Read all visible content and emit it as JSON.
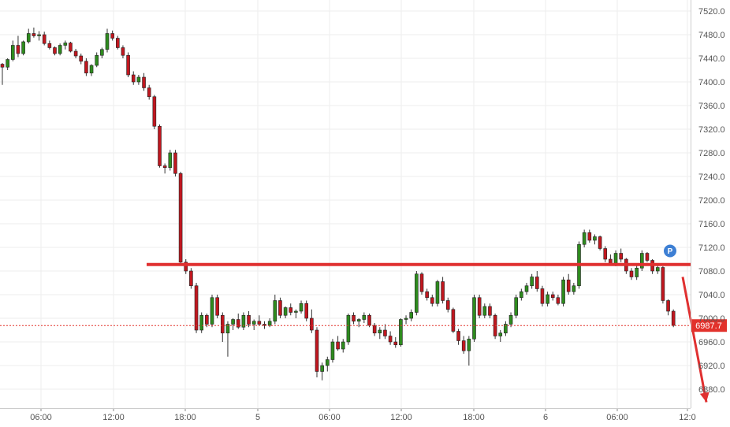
{
  "chart_data": {
    "type": "candlestick",
    "title": "",
    "ylim": [
      6870,
      7530
    ],
    "x_tick_labels": [
      "06:00",
      "12:00",
      "18:00",
      "5",
      "06:00",
      "12:00",
      "18:00",
      "6",
      "06:00",
      "12:0"
    ],
    "y_tick_labels": [
      "7520.0",
      "7480.0",
      "7440.0",
      "7400.0",
      "7360.0",
      "7320.0",
      "7280.0",
      "7240.0",
      "7200.0",
      "7160.0",
      "7120.0",
      "7080.0",
      "7040.0",
      "7000.0",
      "6960.0",
      "6920.0",
      "6880.0"
    ],
    "last_price": "6987.7",
    "last_price_value": 6987.7,
    "marker_label": "P",
    "resistance_level": 7091,
    "projection": {
      "from": 7070,
      "to": 6858
    },
    "colors": {
      "up": "#2e8b1e",
      "down": "#c0171f",
      "wick": "#333333",
      "resistance": "#e03030",
      "price_tag": "#e2322c",
      "marker": "#3d7fd4",
      "grid": "#eeeeee"
    },
    "candles": [
      [
        7430,
        7432,
        7395,
        7425
      ],
      [
        7425,
        7440,
        7420,
        7438
      ],
      [
        7438,
        7470,
        7435,
        7462
      ],
      [
        7462,
        7478,
        7442,
        7448
      ],
      [
        7448,
        7470,
        7445,
        7468
      ],
      [
        7468,
        7490,
        7465,
        7482
      ],
      [
        7482,
        7492,
        7475,
        7478
      ],
      [
        7478,
        7486,
        7470,
        7480
      ],
      [
        7480,
        7485,
        7462,
        7465
      ],
      [
        7465,
        7470,
        7455,
        7458
      ],
      [
        7458,
        7460,
        7445,
        7448
      ],
      [
        7448,
        7465,
        7445,
        7462
      ],
      [
        7462,
        7470,
        7455,
        7466
      ],
      [
        7466,
        7468,
        7450,
        7452
      ],
      [
        7452,
        7456,
        7440,
        7444
      ],
      [
        7444,
        7448,
        7430,
        7435
      ],
      [
        7435,
        7440,
        7410,
        7415
      ],
      [
        7415,
        7430,
        7410,
        7428
      ],
      [
        7428,
        7450,
        7425,
        7445
      ],
      [
        7445,
        7458,
        7440,
        7455
      ],
      [
        7455,
        7490,
        7450,
        7482
      ],
      [
        7482,
        7487,
        7470,
        7474
      ],
      [
        7474,
        7478,
        7455,
        7458
      ],
      [
        7458,
        7462,
        7440,
        7445
      ],
      [
        7445,
        7450,
        7408,
        7412
      ],
      [
        7412,
        7418,
        7395,
        7400
      ],
      [
        7400,
        7412,
        7395,
        7408
      ],
      [
        7408,
        7415,
        7385,
        7390
      ],
      [
        7390,
        7395,
        7370,
        7375
      ],
      [
        7375,
        7378,
        7320,
        7325
      ],
      [
        7325,
        7328,
        7255,
        7258
      ],
      [
        7258,
        7262,
        7245,
        7255
      ],
      [
        7255,
        7285,
        7250,
        7280
      ],
      [
        7280,
        7285,
        7240,
        7245
      ],
      [
        7245,
        7248,
        7090,
        7095
      ],
      [
        7095,
        7100,
        7075,
        7080
      ],
      [
        7080,
        7085,
        7050,
        7055
      ],
      [
        7055,
        7060,
        6975,
        6980
      ],
      [
        6980,
        7010,
        6975,
        7005
      ],
      [
        7005,
        7008,
        6985,
        6990
      ],
      [
        6990,
        7040,
        6985,
        7035
      ],
      [
        7035,
        7040,
        7000,
        7005
      ],
      [
        7005,
        7010,
        6960,
        6975
      ],
      [
        6975,
        6995,
        6935,
        6990
      ],
      [
        6990,
        7000,
        6980,
        6998
      ],
      [
        6998,
        7008,
        6982,
        6985
      ],
      [
        6985,
        7010,
        6980,
        7005
      ],
      [
        7005,
        7012,
        6985,
        6990
      ],
      [
        6990,
        6998,
        6980,
        6995
      ],
      [
        6995,
        7005,
        6988,
        6990
      ],
      [
        6990,
        6995,
        6982,
        6988
      ],
      [
        6988,
        7000,
        6985,
        6995
      ],
      [
        6995,
        7040,
        6990,
        7030
      ],
      [
        7030,
        7035,
        7000,
        7005
      ],
      [
        7005,
        7020,
        7000,
        7018
      ],
      [
        7018,
        7025,
        7005,
        7010
      ],
      [
        7010,
        7015,
        7000,
        7012
      ],
      [
        7012,
        7030,
        7008,
        7025
      ],
      [
        7025,
        7030,
        6995,
        7000
      ],
      [
        7000,
        7015,
        6975,
        6980
      ],
      [
        6980,
        6985,
        6900,
        6910
      ],
      [
        6910,
        6925,
        6895,
        6920
      ],
      [
        6920,
        6935,
        6910,
        6930
      ],
      [
        6930,
        6965,
        6925,
        6960
      ],
      [
        6960,
        6970,
        6945,
        6948
      ],
      [
        6948,
        6965,
        6942,
        6960
      ],
      [
        6960,
        7008,
        6955,
        7005
      ],
      [
        7005,
        7010,
        6990,
        6995
      ],
      [
        6995,
        7000,
        6985,
        6998
      ],
      [
        6998,
        7010,
        6992,
        7005
      ],
      [
        7005,
        7008,
        6985,
        6988
      ],
      [
        6988,
        6992,
        6970,
        6975
      ],
      [
        6975,
        6985,
        6965,
        6980
      ],
      [
        6980,
        6990,
        6965,
        6970
      ],
      [
        6970,
        6978,
        6955,
        6960
      ],
      [
        6960,
        6968,
        6950,
        6955
      ],
      [
        6955,
        7000,
        6952,
        6998
      ],
      [
        6998,
        7005,
        6990,
        7000
      ],
      [
        7000,
        7015,
        6995,
        7010
      ],
      [
        7010,
        7080,
        7005,
        7075
      ],
      [
        7075,
        7078,
        7040,
        7045
      ],
      [
        7045,
        7050,
        7030,
        7035
      ],
      [
        7035,
        7040,
        7020,
        7025
      ],
      [
        7025,
        7065,
        7020,
        7062
      ],
      [
        7062,
        7070,
        7025,
        7030
      ],
      [
        7030,
        7035,
        7010,
        7015
      ],
      [
        7015,
        7018,
        6975,
        6978
      ],
      [
        6978,
        6982,
        6955,
        6962
      ],
      [
        6962,
        6970,
        6940,
        6945
      ],
      [
        6945,
        6970,
        6920,
        6965
      ],
      [
        6965,
        7040,
        6960,
        7035
      ],
      [
        7035,
        7040,
        7000,
        7005
      ],
      [
        7005,
        7025,
        7000,
        7020
      ],
      [
        7020,
        7025,
        7000,
        7005
      ],
      [
        7005,
        7008,
        6965,
        6970
      ],
      [
        6970,
        6980,
        6960,
        6975
      ],
      [
        6975,
        6995,
        6970,
        6990
      ],
      [
        6990,
        7010,
        6985,
        7005
      ],
      [
        7005,
        7040,
        7000,
        7035
      ],
      [
        7035,
        7050,
        7030,
        7045
      ],
      [
        7045,
        7060,
        7040,
        7055
      ],
      [
        7055,
        7075,
        7050,
        7070
      ],
      [
        7070,
        7080,
        7045,
        7050
      ],
      [
        7050,
        7055,
        7020,
        7025
      ],
      [
        7025,
        7045,
        7020,
        7040
      ],
      [
        7040,
        7045,
        7030,
        7035
      ],
      [
        7035,
        7040,
        7022,
        7025
      ],
      [
        7025,
        7070,
        7020,
        7065
      ],
      [
        7065,
        7075,
        7040,
        7045
      ],
      [
        7045,
        7060,
        7040,
        7055
      ],
      [
        7055,
        7130,
        7050,
        7125
      ],
      [
        7125,
        7150,
        7120,
        7145
      ],
      [
        7145,
        7150,
        7128,
        7132
      ],
      [
        7132,
        7142,
        7125,
        7138
      ],
      [
        7138,
        7140,
        7115,
        7118
      ],
      [
        7118,
        7122,
        7095,
        7100
      ],
      [
        7100,
        7108,
        7090,
        7092
      ],
      [
        7092,
        7115,
        7088,
        7110
      ],
      [
        7110,
        7118,
        7095,
        7100
      ],
      [
        7100,
        7102,
        7075,
        7080
      ],
      [
        7080,
        7085,
        7065,
        7070
      ],
      [
        7070,
        7090,
        7065,
        7085
      ],
      [
        7085,
        7115,
        7080,
        7110
      ],
      [
        7110,
        7112,
        7095,
        7098
      ],
      [
        7098,
        7100,
        7075,
        7080
      ],
      [
        7080,
        7090,
        7075,
        7086
      ],
      [
        7086,
        7088,
        7025,
        7030
      ],
      [
        7030,
        7032,
        7005,
        7012
      ],
      [
        7012,
        7015,
        6985,
        6988
      ]
    ]
  }
}
